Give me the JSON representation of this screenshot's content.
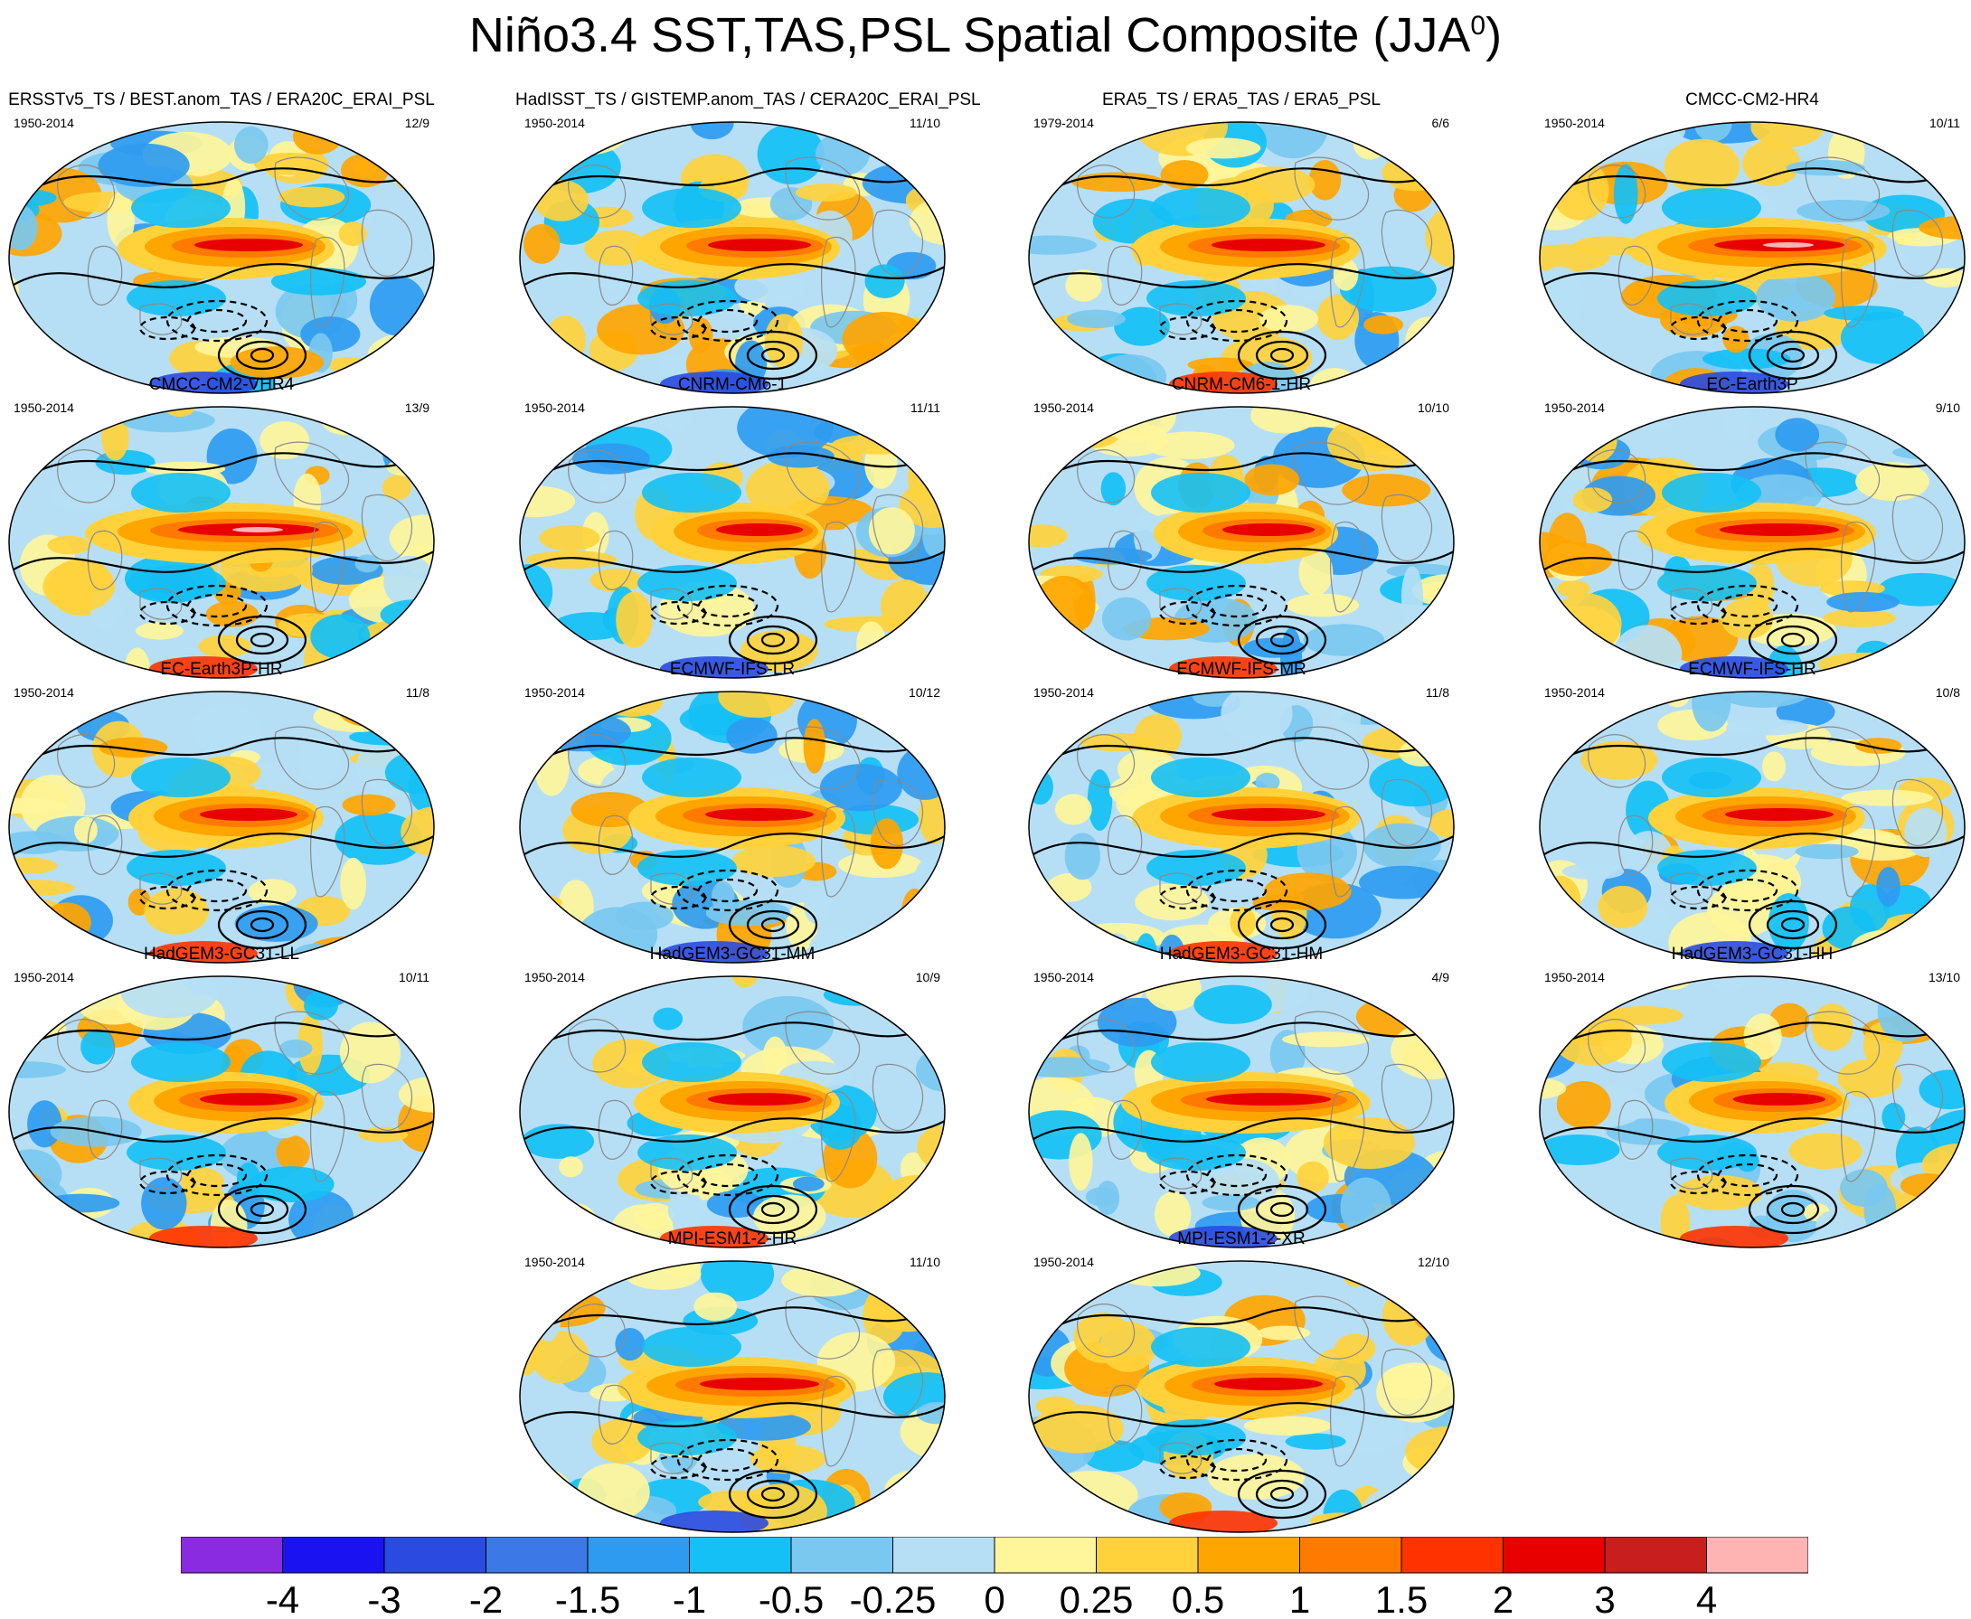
{
  "page": {
    "title_main": "Niño3.4 SST,TAS,PSL Spatial Composite (JJA",
    "title_sup": "0",
    "title_close": ")"
  },
  "chart_data": {
    "type": "heatmap",
    "projection": "global map (elliptical)",
    "fill_variables": [
      "SST",
      "TAS"
    ],
    "contour_variable": "PSL",
    "season": "JJA",
    "colorbar": {
      "labels": [
        "-4",
        "-3",
        "-2",
        "-1.5",
        "-1",
        "-0.5",
        "-0.25",
        "0",
        "0.25",
        "0.5",
        "1",
        "1.5",
        "2",
        "3",
        "4"
      ],
      "colors": [
        "#8a2be2",
        "#1a12f0",
        "#2a4ae0",
        "#3c78e6",
        "#2f9bf0",
        "#14c0f5",
        "#7ac8f0",
        "#b6dff5",
        "#fff59a",
        "#ffd23c",
        "#ffa500",
        "#ff7a00",
        "#ff3200",
        "#e80000",
        "#c81e1e",
        "#ffb4b4"
      ]
    },
    "panels": [
      {
        "title": "ERSSTv5_TS / BEST.anom_TAS / ERA20C_ERAI_PSL",
        "period": "1950-2014",
        "count": "12/9",
        "intensity": 1.0
      },
      {
        "title": "HadISST_TS / GISTEMP.anom_TAS / CERA20C_ERAI_PSL",
        "period": "1950-2014",
        "count": "11/10",
        "intensity": 0.95
      },
      {
        "title": "ERA5_TS / ERA5_TAS / ERA5_PSL",
        "period": "1979-2014",
        "count": "6/6",
        "intensity": 1.05
      },
      {
        "title": "CMCC-CM2-HR4",
        "period": "1950-2014",
        "count": "10/11",
        "intensity": 1.2
      },
      {
        "title": "CMCC-CM2-VHR4",
        "period": "1950-2014",
        "count": "13/9",
        "intensity": 1.3
      },
      {
        "title": "CNRM-CM6-1",
        "period": "1950-2014",
        "count": "11/11",
        "intensity": 0.8
      },
      {
        "title": "CNRM-CM6-1-HR",
        "period": "1950-2014",
        "count": "10/10",
        "intensity": 0.85
      },
      {
        "title": "EC-Earth3P",
        "period": "1950-2014",
        "count": "9/10",
        "intensity": 1.1
      },
      {
        "title": "EC-Earth3P-HR",
        "period": "1950-2014",
        "count": "11/8",
        "intensity": 0.9
      },
      {
        "title": "ECMWF-IFS-LR",
        "period": "1950-2014",
        "count": "10/12",
        "intensity": 1.0
      },
      {
        "title": "ECMWF-IFS-MR",
        "period": "1950-2014",
        "count": "11/8",
        "intensity": 1.05
      },
      {
        "title": "ECMWF-IFS-HR",
        "period": "1950-2014",
        "count": "10/8",
        "intensity": 1.0
      },
      {
        "title": "HadGEM3-GC31-LL",
        "period": "1950-2014",
        "count": "10/11",
        "intensity": 0.9
      },
      {
        "title": "HadGEM3-GC31-MM",
        "period": "1950-2014",
        "count": "10/9",
        "intensity": 0.95
      },
      {
        "title": "HadGEM3-GC31-HM",
        "period": "1950-2014",
        "count": "4/9",
        "intensity": 1.15
      },
      {
        "title": "HadGEM3-GC31-HH",
        "period": "1950-2014",
        "count": "13/10",
        "intensity": 0.85
      },
      {
        "title": "MPI-ESM1-2-HR",
        "period": "1950-2014",
        "count": "11/10",
        "intensity": 1.1
      },
      {
        "title": "MPI-ESM1-2-XR",
        "period": "1950-2014",
        "count": "12/10",
        "intensity": 1.0
      }
    ]
  }
}
